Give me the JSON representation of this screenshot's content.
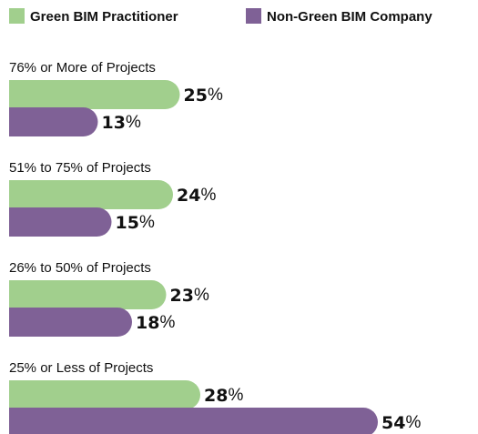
{
  "chart_data": {
    "type": "bar",
    "orientation": "horizontal",
    "categories": [
      "76% or More of Projects",
      "51% to 75% of Projects",
      "26% to 50% of Projects",
      "25% or Less of Projects"
    ],
    "series": [
      {
        "name": "Green BIM Practitioner",
        "color": "#a1cf8d",
        "values": [
          25,
          24,
          23,
          28
        ],
        "value_labels": [
          "25%",
          "24%",
          "23%",
          "28%"
        ]
      },
      {
        "name": "Non-Green BIM Company",
        "color": "#7f6196",
        "values": [
          13,
          15,
          18,
          54
        ],
        "value_labels": [
          "13%",
          "15%",
          "18%",
          "54%"
        ]
      }
    ],
    "legend": "top-left"
  }
}
